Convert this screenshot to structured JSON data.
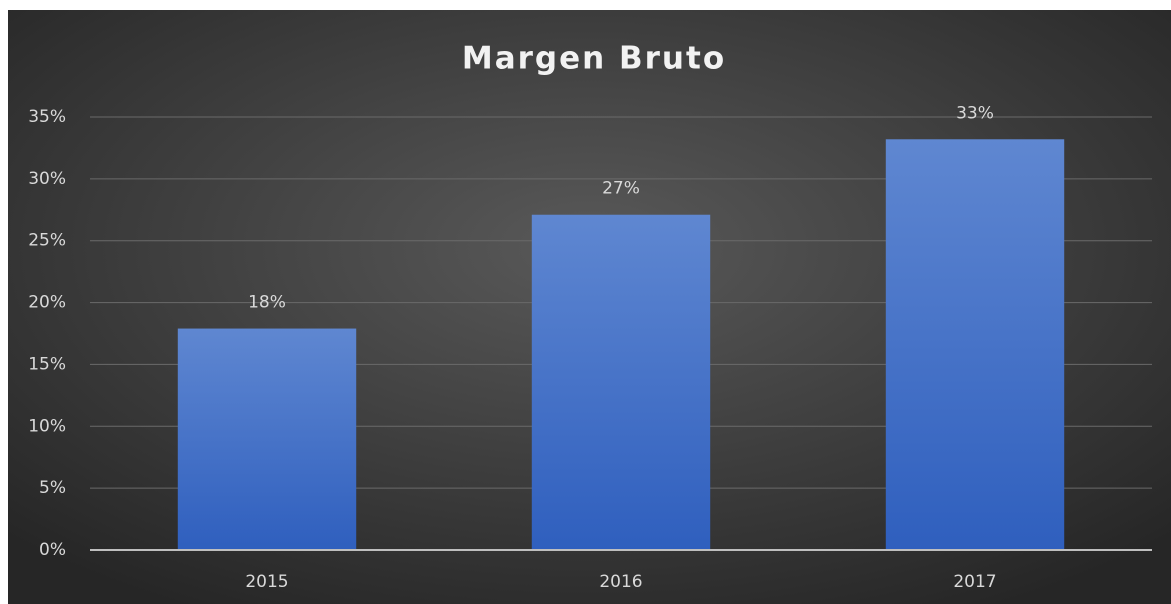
{
  "chart_data": {
    "type": "bar",
    "title": "Margen Bruto",
    "categories": [
      "2015",
      "2016",
      "2017"
    ],
    "values": [
      17.9,
      27.1,
      33.2
    ],
    "value_labels": [
      "18%",
      "27%",
      "33%"
    ],
    "color": "#4472c4",
    "ylim": [
      0,
      35
    ],
    "yticks": [
      {
        "value": 0,
        "label": "0%"
      },
      {
        "value": 5,
        "label": "5%"
      },
      {
        "value": 10,
        "label": "10%"
      },
      {
        "value": 15,
        "label": "15%"
      },
      {
        "value": 20,
        "label": "20%"
      },
      {
        "value": 25,
        "label": "25%"
      },
      {
        "value": 30,
        "label": "30%"
      },
      {
        "value": 35,
        "label": "35%"
      }
    ],
    "grid": true
  }
}
